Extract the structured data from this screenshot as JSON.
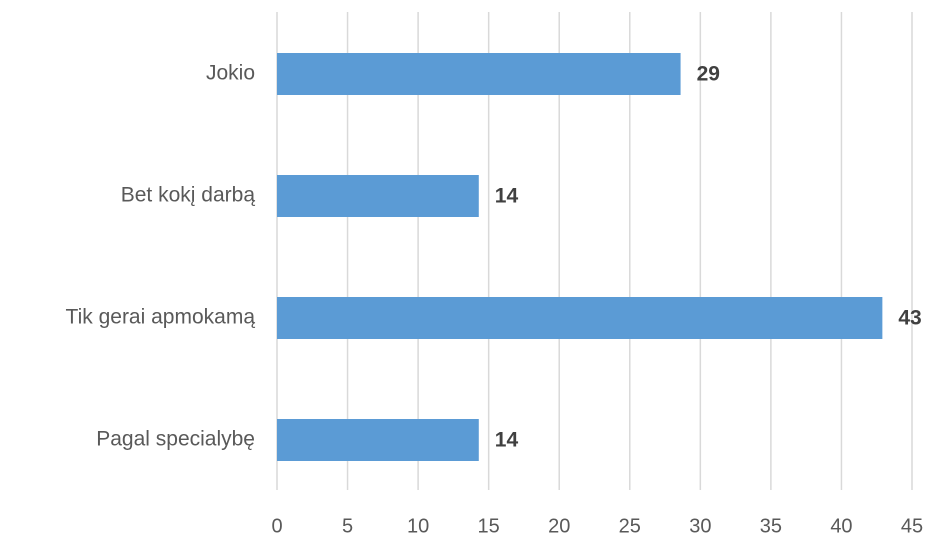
{
  "chart_data": {
    "type": "bar",
    "orientation": "horizontal",
    "categories": [
      "Jokio",
      "Bet kokį darbą",
      "Tik gerai apmokamą",
      "Pagal specialybę"
    ],
    "values": [
      28.6,
      14.3,
      42.9,
      14.3
    ],
    "value_labels": [
      "29",
      "14",
      "43",
      "14"
    ],
    "color": "#5b9bd5",
    "xlim": [
      0,
      45
    ],
    "xticks": [
      0,
      5,
      10,
      15,
      20,
      25,
      30,
      35,
      40,
      45
    ],
    "grid": true
  }
}
